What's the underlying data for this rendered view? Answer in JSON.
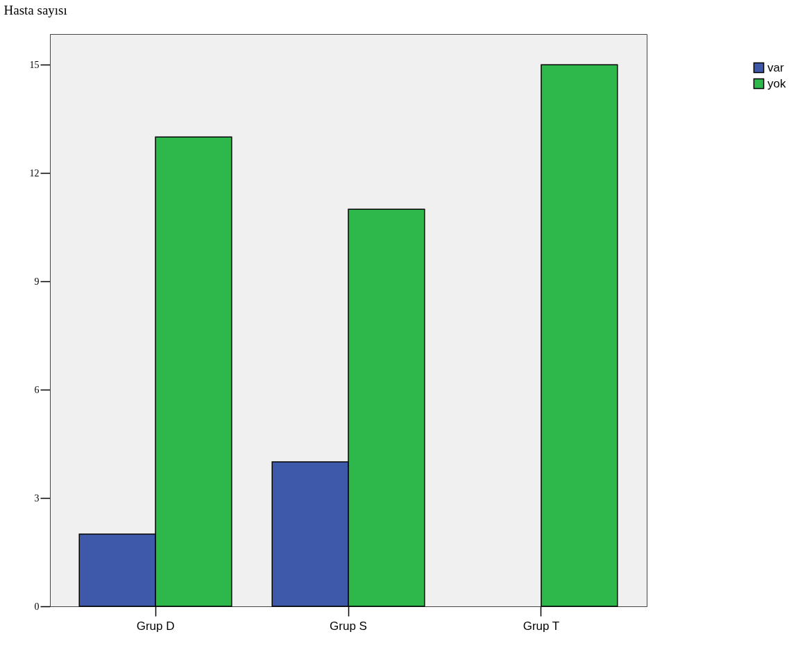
{
  "chart_data": {
    "type": "bar",
    "ylabel": "Hasta sayısı",
    "categories": [
      "Grup D",
      "Grup S",
      "Grup T"
    ],
    "series": [
      {
        "name": "var",
        "color": "#3f59aa",
        "values": [
          2,
          4,
          null
        ]
      },
      {
        "name": "yok",
        "color": "#2eb84b",
        "values": [
          13,
          11,
          15
        ]
      }
    ],
    "ylim": [
      0,
      15.85
    ],
    "yticks": [
      0,
      3,
      6,
      9,
      12,
      15
    ],
    "grid": false,
    "legend": "top right"
  }
}
